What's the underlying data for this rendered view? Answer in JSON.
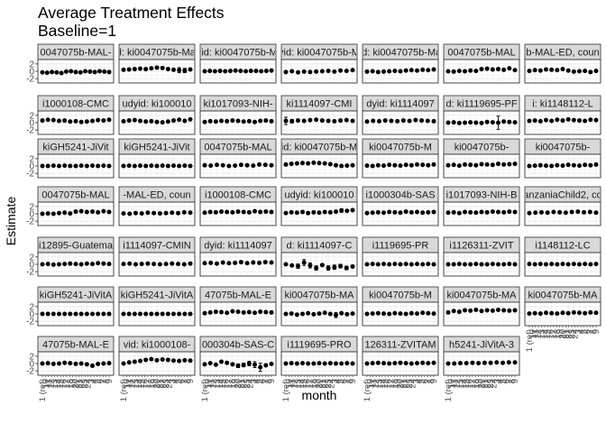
{
  "chart_data": {
    "type": "scatter",
    "title": "Average Treatment Effects",
    "subtitle": "Baseline=1",
    "xlabel": "month",
    "ylabel": "Estimate",
    "y_ticks": [
      "2",
      "0",
      "-2"
    ],
    "ylim": [
      -3.2,
      3.2
    ],
    "x_tick_labels": [
      "1 (ref)",
      "10",
      "11",
      "12",
      "13",
      "14",
      "15",
      "16",
      "17",
      "18",
      "19",
      "20",
      "21",
      "22",
      "23",
      "24",
      "3",
      "4",
      "5",
      "6",
      "7",
      "8",
      "9"
    ],
    "grid": true,
    "legend": "none",
    "colors": {
      "panel_border": "#333333",
      "strip_fill": "#d9d9d9",
      "grid": "#ebebeb",
      "points": "#000000"
    },
    "panels": [
      {
        "strip": "0047075b-MAL-",
        "values": [
          -0.3,
          -0.4,
          -0.2,
          -0.3,
          -0.5,
          -0.1,
          0.0,
          -0.2,
          -0.3,
          0.0,
          -0.1,
          -0.2,
          0.0,
          -0.1,
          -0.2
        ]
      },
      {
        "strip": "d: ki0047075b-Mal",
        "values": [
          0.4,
          0.5,
          0.6,
          0.7,
          0.6,
          0.8,
          1.0,
          0.9,
          0.6,
          0.4,
          0.3,
          0.2,
          0.5
        ],
        "err": [
          0.3,
          0.3,
          0.3,
          0.3,
          0.3,
          0.3,
          0.3,
          0.3,
          0.3,
          0.3,
          0.7,
          0.6,
          0.4
        ]
      },
      {
        "strip": "/id: ki0047075b-M",
        "values": [
          0.0,
          0.1,
          0.0,
          0.1,
          0.0,
          0.1,
          0.2,
          0.1,
          0.0,
          0.1,
          0.1,
          0.0,
          0.1,
          0.2
        ]
      },
      {
        "strip": "yid: ki0047075b-M",
        "values": [
          -0.2,
          0.0,
          -0.3,
          -0.1,
          -0.2,
          -0.1,
          0.0,
          0.1,
          -0.1,
          0.2,
          0.1,
          0.3
        ]
      },
      {
        "strip": "id: ki0047075b-Ma",
        "values": [
          -0.1,
          0.0,
          -0.2,
          -0.1,
          0.0,
          0.1,
          0.0,
          0.2,
          0.3,
          0.2,
          0.4,
          0.3,
          0.5
        ]
      },
      {
        "strip": "0047075b-MAL",
        "values": [
          0.0,
          -0.1,
          0.1,
          0.0,
          0.2,
          0.1,
          0.6,
          0.7,
          0.5,
          0.6,
          0.4,
          0.8,
          0.3
        ]
      },
      {
        "strip": "b-MAL-ED, coun",
        "values": [
          0.1,
          0.3,
          0.2,
          0.5,
          0.4,
          0.3,
          0.6,
          0.2,
          -0.1,
          0.0,
          0.1,
          -0.2,
          0.1
        ]
      },
      {
        "strip": "i1000108-CMC",
        "values": [
          0.6,
          0.8,
          0.7,
          0.5,
          0.6,
          0.3,
          0.4,
          0.2,
          0.3,
          0.5,
          0.7,
          0.6,
          0.8
        ]
      },
      {
        "strip": "udyid: ki100010",
        "values": [
          0.4,
          0.6,
          0.7,
          0.5,
          0.3,
          0.4,
          0.2,
          0.1,
          0.3,
          0.6,
          0.8,
          0.5,
          0.9
        ]
      },
      {
        "strip": "ki1017093-NIH-",
        "values": [
          0.2,
          0.4,
          0.3,
          0.5,
          0.4,
          0.6,
          0.5,
          0.3,
          0.4,
          0.2,
          0.5,
          0.6,
          0.4
        ]
      },
      {
        "strip": "ki1114097-CMI",
        "values": [
          0.5,
          0.4,
          0.6,
          0.5,
          0.7,
          0.8,
          0.6,
          0.5,
          0.4,
          0.6,
          0.7,
          0.5
        ],
        "err": [
          1.0,
          0.5,
          0.4,
          0.3,
          0.3,
          0.3,
          0.3,
          0.3,
          0.3,
          0.3,
          0.3,
          0.3
        ]
      },
      {
        "strip": "dyid: ki1114097",
        "values": [
          0.3,
          0.5,
          0.4,
          0.6,
          0.5,
          0.4,
          0.6,
          0.5,
          0.7,
          0.6,
          0.5,
          0.4
        ]
      },
      {
        "strip": "d: ki1119695-PF",
        "values": [
          0.0,
          0.1,
          -0.1,
          0.0,
          0.1,
          0.0,
          -0.1,
          0.2,
          0.1,
          0.0,
          0.3,
          0.2,
          0.1
        ],
        "err": [
          0.3,
          0.3,
          0.3,
          0.3,
          0.3,
          0.3,
          0.3,
          0.3,
          0.3,
          1.8,
          0.3,
          0.3,
          0.3
        ]
      },
      {
        "strip": "i: ki1148112-L",
        "values": [
          0.5,
          0.6,
          0.4,
          0.7,
          0.5,
          0.8,
          0.6,
          0.9,
          0.7,
          0.6,
          0.5,
          0.8,
          0.7
        ]
      },
      {
        "strip": "kiGH5241-JiVit",
        "values": [
          0.0,
          0.0,
          0.1,
          0.0,
          0.1,
          0.0,
          0.0,
          0.1,
          0.0,
          0.1,
          0.0,
          0.1,
          0.0
        ]
      },
      {
        "strip": "kiGH5241-JiVit",
        "values": [
          0.0,
          0.1,
          0.0,
          0.1,
          0.0,
          0.1,
          0.0,
          0.1,
          0.0,
          0.1,
          0.0,
          0.1,
          0.0
        ]
      },
      {
        "strip": "0047075b-MAL",
        "values": [
          0.2,
          0.1,
          0.3,
          0.2,
          0.0,
          0.1,
          0.3,
          0.2,
          0.1,
          0.4,
          0.3,
          0.2
        ]
      },
      {
        "strip": "id: ki0047075b-M",
        "values": [
          0.4,
          0.6,
          0.7,
          0.8,
          0.7,
          0.9,
          0.8,
          0.7,
          0.5,
          0.2,
          0.0,
          0.1,
          0.2
        ],
        "err": [
          0.3,
          0.3,
          0.3,
          0.3,
          0.3,
          0.3,
          0.3,
          0.3,
          0.3,
          0.3,
          0.4,
          0.4,
          0.3
        ]
      },
      {
        "strip": "ki0047075b-M",
        "values": [
          0.1,
          0.0,
          0.2,
          0.1,
          0.3,
          0.2,
          0.1,
          0.3,
          0.2,
          0.4,
          0.3,
          0.2,
          0.4
        ]
      },
      {
        "strip": "ki0047075b-",
        "values": [
          0.2,
          0.3,
          0.1,
          0.4,
          0.3,
          0.2,
          0.5,
          0.4,
          0.3,
          0.6,
          0.4,
          0.5,
          0.6
        ]
      },
      {
        "strip": "ki0047075b-",
        "values": [
          0.0,
          0.1,
          0.2,
          0.1,
          0.0,
          0.2,
          0.1,
          0.3,
          0.2,
          0.1,
          0.3,
          0.2,
          0.4
        ]
      },
      {
        "strip": "0047075b-MAL",
        "values": [
          0.0,
          0.1,
          0.0,
          0.2,
          0.3,
          0.1,
          0.6,
          0.7,
          0.5,
          0.6,
          0.4,
          0.7,
          0.5
        ]
      },
      {
        "strip": "-MAL-ED, coun",
        "values": [
          0.1,
          0.0,
          0.2,
          0.1,
          0.3,
          0.2,
          0.1,
          0.2,
          0.3,
          0.2,
          0.4,
          0.3
        ]
      },
      {
        "strip": "i1000108-CMC",
        "values": [
          0.3,
          0.5,
          0.4,
          0.6,
          0.5,
          0.4,
          0.6,
          0.5,
          0.4,
          0.7,
          0.5,
          0.6,
          0.5
        ]
      },
      {
        "strip": "udyid: ki100010",
        "values": [
          0.2,
          0.4,
          0.3,
          0.5,
          0.2,
          0.4,
          0.3,
          0.5,
          0.4,
          0.6,
          0.9,
          0.8,
          1.0
        ],
        "err": [
          0.3,
          0.3,
          0.3,
          0.3,
          0.3,
          0.3,
          0.3,
          0.3,
          0.3,
          0.3,
          0.5,
          0.3,
          0.3
        ]
      },
      {
        "strip": "i1000304b-SAS",
        "values": [
          0.2,
          0.3,
          0.4,
          0.3,
          0.5,
          0.4,
          0.3,
          0.6,
          0.4,
          0.5,
          0.3,
          0.4,
          0.5
        ]
      },
      {
        "strip": "i1017093-NIH-B",
        "values": [
          0.3,
          0.4,
          0.2,
          0.5,
          0.4,
          0.3,
          0.5,
          0.4,
          0.6,
          0.5,
          0.4,
          0.6,
          0.5
        ]
      },
      {
        "strip": "anzaniaChild2, co",
        "values": [
          0.2,
          0.3,
          0.4,
          0.3,
          0.5,
          0.4,
          0.3,
          0.5,
          0.6,
          0.4,
          0.5,
          0.3
        ]
      },
      {
        "strip": "i12895-Guatema",
        "values": [
          0.0,
          0.1,
          -0.1,
          0.0,
          0.1,
          0.2,
          0.1,
          0.0,
          0.2,
          0.1,
          0.3,
          0.2,
          0.1
        ]
      },
      {
        "strip": "i1114097-CMIN",
        "values": [
          0.1,
          0.2,
          0.0,
          0.1,
          0.2,
          0.1,
          0.0,
          0.1,
          0.2,
          0.1,
          0.0,
          0.2
        ]
      },
      {
        "strip": "dyid: ki1114097",
        "values": [
          0.3,
          0.4,
          0.2,
          0.5,
          0.3,
          0.4,
          0.6,
          0.3,
          0.5,
          0.4,
          0.6,
          0.5
        ]
      },
      {
        "strip": "d: ki1114097-C",
        "values": [
          0.0,
          -0.3,
          -0.5,
          0.5,
          -0.3,
          -1.0,
          -0.2,
          -1.0,
          -0.8,
          -0.5,
          -1.0,
          -0.6
        ],
        "err": [
          0.3,
          0.4,
          0.6,
          0.8,
          0.7,
          0.6,
          0.4,
          0.6,
          0.6,
          0.5,
          0.5,
          0.4
        ]
      },
      {
        "strip": "i1119695-PR",
        "values": [
          0.0,
          0.1,
          0.0,
          0.1,
          0.0,
          0.1,
          0.0,
          0.1,
          0.0,
          0.1,
          0.0,
          0.1,
          0.0
        ]
      },
      {
        "strip": "i1126311-ZVIT",
        "values": [
          0.0,
          0.0,
          0.1,
          0.0,
          0.0,
          0.1,
          0.0,
          0.0,
          0.1,
          0.0,
          0.0,
          0.1,
          0.0
        ]
      },
      {
        "strip": "i1148112-LC",
        "values": [
          0.1,
          0.0,
          0.1,
          0.0,
          0.1,
          0.0,
          0.1,
          0.0,
          0.1,
          0.0,
          0.1,
          0.0,
          0.1
        ]
      },
      {
        "strip": "kiGH5241-JiVitA",
        "values": [
          0.0,
          0.0,
          0.0,
          0.0,
          0.0,
          0.0,
          0.0,
          0.0,
          0.0,
          0.0,
          0.0,
          0.0,
          0.0
        ]
      },
      {
        "strip": "kiGH5241-JiVitA",
        "values": [
          0.0,
          0.0,
          0.0,
          0.0,
          0.0,
          0.0,
          0.0,
          0.0,
          0.0,
          0.0,
          0.0,
          0.0,
          0.0
        ]
      },
      {
        "strip": "47075b-MAL-E",
        "values": [
          0.2,
          0.4,
          0.6,
          0.5,
          0.3,
          0.7,
          0.6,
          0.4,
          0.5,
          0.3,
          0.6,
          0.5,
          0.4
        ]
      },
      {
        "strip": "ki0047075b-MA",
        "values": [
          0.0,
          0.1,
          -0.2,
          0.0,
          0.2,
          -0.1,
          0.1,
          0.3,
          0.0,
          -0.3,
          0.2,
          -0.1,
          0.1
        ],
        "err": [
          0.3,
          0.3,
          0.3,
          0.3,
          0.3,
          0.3,
          0.3,
          0.3,
          0.3,
          0.7,
          0.3,
          0.3,
          0.3
        ]
      },
      {
        "strip": "ki0047075b-M",
        "values": [
          0.0,
          0.1,
          0.2,
          0.1,
          0.0,
          0.2,
          0.1,
          0.0,
          0.2,
          0.1,
          0.3,
          0.2,
          0.1
        ]
      },
      {
        "strip": "ki0047075b-MA",
        "values": [
          0.4,
          0.8,
          0.6,
          1.0,
          0.9,
          1.1,
          0.8,
          1.0,
          0.9,
          1.1,
          1.0,
          0.9,
          1.0
        ],
        "err": [
          0.3,
          0.3,
          0.3,
          0.3,
          0.3,
          0.3,
          0.3,
          0.3,
          0.3,
          0.3,
          0.3,
          0.3,
          0.3
        ]
      },
      {
        "strip": "ki0047075b-MA",
        "values": [
          0.1,
          0.2,
          0.1,
          0.3,
          0.2,
          0.1,
          0.3,
          0.2,
          0.4,
          0.3,
          0.2,
          0.4,
          0.3
        ]
      },
      {
        "strip": "47075b-MAL-E",
        "values": [
          0.0,
          0.1,
          -0.1,
          0.0,
          0.2,
          0.1,
          -0.1,
          0.0,
          -0.2,
          -0.6,
          -0.1,
          0.0,
          0.1
        ]
      },
      {
        "strip": "vid: ki1000108-",
        "values": [
          0.0,
          0.3,
          0.5,
          0.7,
          1.0,
          1.2,
          0.9,
          1.1,
          1.0,
          0.8,
          0.7,
          0.9,
          0.8
        ],
        "err": [
          0.3,
          0.3,
          0.3,
          0.3,
          0.3,
          0.4,
          0.3,
          0.3,
          0.3,
          0.3,
          0.3,
          0.3,
          0.3
        ]
      },
      {
        "strip": "000304b-SAS-C",
        "values": [
          -0.2,
          0.1,
          -0.3,
          0.5,
          0.2,
          -0.2,
          -0.6,
          -0.4,
          0.0,
          -0.3,
          -1.0,
          -0.5,
          -0.1
        ],
        "err": [
          0.3,
          0.3,
          0.3,
          0.4,
          0.3,
          0.4,
          0.5,
          0.5,
          0.6,
          0.8,
          1.1,
          0.3,
          0.3
        ]
      },
      {
        "strip": "i1119695-PRO",
        "values": [
          0.0,
          0.1,
          0.0,
          0.1,
          0.0,
          0.0,
          0.1,
          0.0,
          0.1,
          0.0,
          0.0,
          0.1,
          0.0
        ]
      },
      {
        "strip": "126311-ZVITAM",
        "values": [
          0.0,
          0.1,
          0.2,
          0.1,
          0.0,
          0.1,
          0.2,
          0.1,
          0.0,
          0.1,
          0.2,
          0.1,
          0.2
        ]
      },
      {
        "strip": "h5241-JiVitA-3",
        "values": [
          0.0,
          0.0,
          0.1,
          0.1,
          0.2,
          0.1,
          0.2,
          0.2,
          0.3,
          0.2,
          0.3,
          0.3
        ]
      }
    ]
  }
}
